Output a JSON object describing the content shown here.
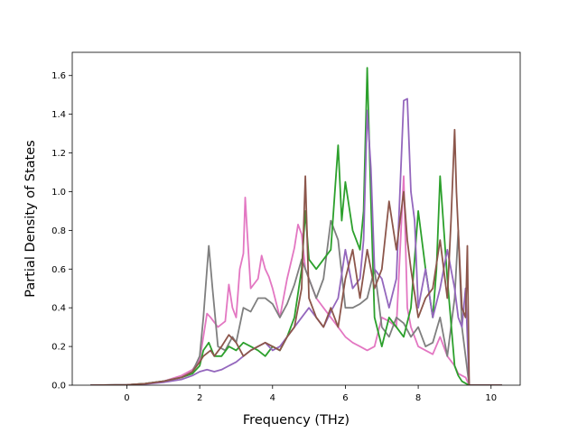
{
  "chart_data": {
    "type": "line",
    "xlabel": "Frequency (THz)",
    "ylabel": "Partial Density of States",
    "xlim": [
      -1.5,
      10.8
    ],
    "ylim": [
      0.0,
      1.72
    ],
    "xticks": [
      0,
      2,
      4,
      6,
      8,
      10
    ],
    "xtick_labels": [
      "0",
      "2",
      "4",
      "6",
      "8",
      "10"
    ],
    "yticks": [
      0.0,
      0.2,
      0.4,
      0.6,
      0.8,
      1.0,
      1.2,
      1.4,
      1.6
    ],
    "ytick_labels": [
      "0.0",
      "0.2",
      "0.4",
      "0.6",
      "0.8",
      "1.0",
      "1.2",
      "1.4",
      "1.6"
    ],
    "grid": false,
    "series": [
      {
        "color": "#e377c2",
        "x": [
          -1.0,
          0.0,
          0.5,
          1.0,
          1.5,
          1.8,
          2.0,
          2.1,
          2.2,
          2.3,
          2.5,
          2.7,
          2.8,
          2.9,
          3.0,
          3.1,
          3.2,
          3.25,
          3.3,
          3.4,
          3.6,
          3.7,
          3.8,
          3.9,
          4.0,
          4.2,
          4.3,
          4.4,
          4.6,
          4.7,
          4.8,
          4.9,
          5.0,
          5.2,
          5.4,
          5.6,
          5.8,
          6.0,
          6.2,
          6.4,
          6.6,
          6.8,
          7.0,
          7.2,
          7.4,
          7.6,
          7.7,
          7.8,
          8.0,
          8.2,
          8.4,
          8.6,
          8.8,
          9.0,
          9.1,
          9.2,
          9.3,
          9.4,
          10.3
        ],
        "y": [
          0.0,
          0.002,
          0.008,
          0.02,
          0.05,
          0.08,
          0.13,
          0.25,
          0.37,
          0.35,
          0.3,
          0.33,
          0.52,
          0.4,
          0.35,
          0.6,
          0.68,
          0.97,
          0.8,
          0.5,
          0.55,
          0.67,
          0.6,
          0.56,
          0.5,
          0.35,
          0.45,
          0.55,
          0.71,
          0.83,
          0.78,
          0.6,
          0.55,
          0.45,
          0.4,
          0.35,
          0.3,
          0.25,
          0.22,
          0.2,
          0.18,
          0.2,
          0.35,
          0.33,
          0.3,
          1.08,
          0.4,
          0.3,
          0.2,
          0.18,
          0.16,
          0.25,
          0.15,
          0.1,
          0.06,
          0.05,
          0.04,
          0.0,
          0.0
        ]
      },
      {
        "color": "#7f7f7f",
        "x": [
          -1.0,
          0.0,
          0.5,
          1.0,
          1.5,
          1.8,
          2.0,
          2.1,
          2.2,
          2.25,
          2.35,
          2.5,
          2.7,
          2.9,
          3.0,
          3.2,
          3.4,
          3.6,
          3.8,
          4.0,
          4.2,
          4.4,
          4.6,
          4.8,
          5.0,
          5.2,
          5.4,
          5.6,
          5.8,
          6.0,
          6.2,
          6.4,
          6.6,
          6.8,
          7.0,
          7.2,
          7.4,
          7.6,
          7.8,
          8.0,
          8.2,
          8.4,
          8.6,
          8.8,
          9.0,
          9.1,
          9.2,
          9.3,
          9.4,
          10.3
        ],
        "y": [
          0.0,
          0.002,
          0.008,
          0.02,
          0.04,
          0.07,
          0.15,
          0.35,
          0.6,
          0.72,
          0.5,
          0.2,
          0.18,
          0.25,
          0.22,
          0.4,
          0.38,
          0.45,
          0.45,
          0.42,
          0.35,
          0.42,
          0.52,
          0.65,
          0.55,
          0.45,
          0.55,
          0.85,
          0.75,
          0.4,
          0.4,
          0.42,
          0.45,
          0.6,
          0.3,
          0.25,
          0.35,
          0.32,
          0.25,
          0.3,
          0.2,
          0.22,
          0.35,
          0.15,
          0.45,
          0.8,
          0.3,
          0.15,
          0.0,
          0.0
        ]
      },
      {
        "color": "#2ca02c",
        "x": [
          -1.0,
          0.0,
          0.5,
          1.0,
          1.5,
          1.8,
          2.0,
          2.1,
          2.25,
          2.4,
          2.6,
          2.8,
          3.0,
          3.2,
          3.4,
          3.6,
          3.8,
          4.0,
          4.2,
          4.4,
          4.6,
          4.8,
          4.9,
          5.0,
          5.2,
          5.4,
          5.6,
          5.8,
          5.9,
          6.0,
          6.2,
          6.4,
          6.5,
          6.6,
          6.7,
          6.8,
          7.0,
          7.2,
          7.4,
          7.6,
          7.8,
          8.0,
          8.2,
          8.4,
          8.5,
          8.6,
          8.8,
          9.0,
          9.1,
          9.2,
          9.3,
          9.4,
          10.3
        ],
        "y": [
          0.0,
          0.002,
          0.008,
          0.02,
          0.04,
          0.06,
          0.1,
          0.18,
          0.22,
          0.15,
          0.15,
          0.2,
          0.18,
          0.22,
          0.2,
          0.18,
          0.15,
          0.2,
          0.18,
          0.25,
          0.35,
          0.6,
          0.9,
          0.65,
          0.6,
          0.65,
          0.7,
          1.24,
          0.85,
          1.05,
          0.8,
          0.7,
          0.9,
          1.64,
          0.95,
          0.35,
          0.2,
          0.35,
          0.3,
          0.25,
          0.4,
          0.9,
          0.6,
          0.35,
          0.6,
          1.08,
          0.55,
          0.1,
          0.05,
          0.02,
          0.01,
          0.0,
          0.0
        ]
      },
      {
        "color": "#9467bd",
        "x": [
          -1.0,
          0.0,
          0.5,
          1.0,
          1.5,
          1.8,
          2.0,
          2.2,
          2.4,
          2.6,
          2.8,
          3.0,
          3.2,
          3.4,
          3.6,
          3.8,
          4.0,
          4.2,
          4.4,
          4.6,
          4.8,
          5.0,
          5.2,
          5.4,
          5.6,
          5.8,
          6.0,
          6.2,
          6.4,
          6.5,
          6.6,
          6.7,
          6.8,
          7.0,
          7.2,
          7.4,
          7.6,
          7.7,
          7.8,
          7.9,
          8.0,
          8.2,
          8.4,
          8.6,
          8.8,
          9.0,
          9.1,
          9.2,
          9.3,
          9.4,
          10.3
        ],
        "y": [
          0.0,
          0.002,
          0.006,
          0.015,
          0.03,
          0.05,
          0.07,
          0.08,
          0.07,
          0.08,
          0.1,
          0.12,
          0.15,
          0.18,
          0.2,
          0.22,
          0.18,
          0.2,
          0.25,
          0.3,
          0.35,
          0.4,
          0.35,
          0.3,
          0.38,
          0.45,
          0.7,
          0.5,
          0.55,
          0.75,
          1.42,
          1.12,
          0.6,
          0.55,
          0.4,
          0.55,
          1.47,
          1.48,
          1.0,
          0.85,
          0.4,
          0.6,
          0.35,
          0.5,
          0.7,
          0.5,
          0.35,
          0.3,
          0.5,
          0.0,
          0.0
        ]
      },
      {
        "color": "#8c564b",
        "x": [
          -1.0,
          0.0,
          0.5,
          1.0,
          1.5,
          1.8,
          2.0,
          2.1,
          2.3,
          2.4,
          2.6,
          2.8,
          3.0,
          3.2,
          3.4,
          3.6,
          3.8,
          4.0,
          4.2,
          4.4,
          4.6,
          4.8,
          4.9,
          5.0,
          5.2,
          5.4,
          5.6,
          5.8,
          6.0,
          6.2,
          6.4,
          6.6,
          6.8,
          7.0,
          7.2,
          7.4,
          7.5,
          7.6,
          7.7,
          7.8,
          8.0,
          8.2,
          8.4,
          8.6,
          8.8,
          8.9,
          9.0,
          9.05,
          9.1,
          9.2,
          9.3,
          9.35,
          9.4,
          10.3
        ],
        "y": [
          0.0,
          0.002,
          0.008,
          0.02,
          0.04,
          0.07,
          0.12,
          0.15,
          0.18,
          0.15,
          0.2,
          0.26,
          0.22,
          0.15,
          0.18,
          0.2,
          0.22,
          0.2,
          0.18,
          0.25,
          0.3,
          0.5,
          1.08,
          0.45,
          0.35,
          0.3,
          0.4,
          0.3,
          0.55,
          0.7,
          0.45,
          0.7,
          0.5,
          0.6,
          0.95,
          0.7,
          0.85,
          1.0,
          0.75,
          0.6,
          0.35,
          0.45,
          0.5,
          0.75,
          0.45,
          0.85,
          1.32,
          1.0,
          0.8,
          0.4,
          0.35,
          0.72,
          0.0,
          0.0
        ]
      }
    ]
  }
}
